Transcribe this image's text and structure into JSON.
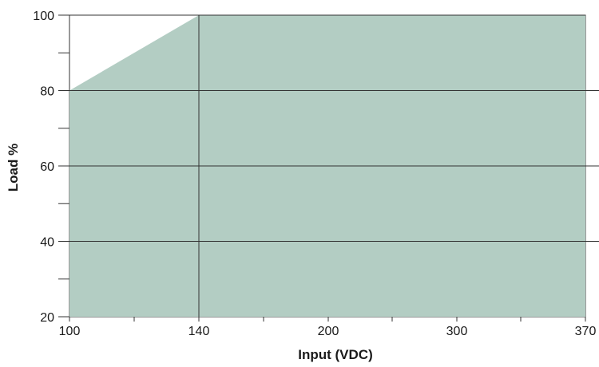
{
  "chart_data": {
    "type": "area",
    "title": "",
    "xlabel": "Input (VDC)",
    "ylabel": "Load %",
    "x_ticks": [
      "100",
      "140",
      "200",
      "300",
      "370"
    ],
    "y_ticks": [
      "20",
      "40",
      "60",
      "80",
      "100"
    ],
    "ylim": [
      20,
      100
    ],
    "series": [
      {
        "x": [
          100,
          140,
          370
        ],
        "y": [
          80,
          100,
          100
        ]
      }
    ],
    "fill_color": "#b3cdc3",
    "grid": true
  }
}
